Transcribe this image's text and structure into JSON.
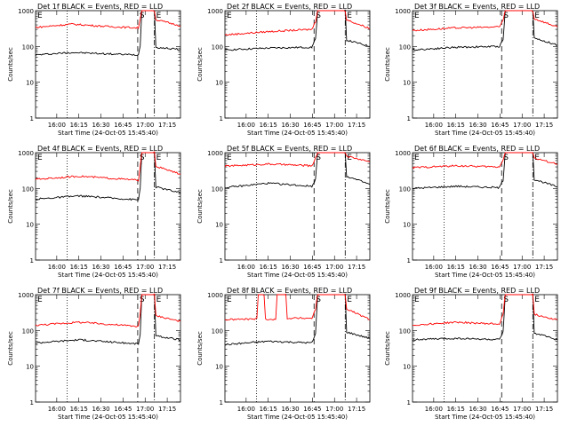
{
  "chart_data": [
    {
      "type": "line",
      "title": "Det 1f BLACK = Events, RED = LLD",
      "xlabel": "Start Time (24-Oct-05 15:45:40)",
      "ylabel": "Counts/sec",
      "yscale": "log",
      "ylim": [
        1,
        1000
      ],
      "x_ticks": [
        "16:00",
        "16:15",
        "16:30",
        "16:45",
        "17:00",
        "17:15"
      ],
      "y_ticks": [
        "1",
        "10",
        "100",
        "1000"
      ],
      "marker_labels": [
        "E",
        "S",
        "E"
      ],
      "series": [
        {
          "color": "#000000",
          "values": [
            [
              0,
              58
            ],
            [
              0.25,
              68
            ],
            [
              0.5,
              62
            ],
            [
              0.71,
              58
            ],
            [
              0.722,
              110
            ],
            [
              0.733,
              1000
            ],
            [
              0.82,
              1000
            ],
            [
              0.83,
              95
            ],
            [
              1,
              82
            ]
          ]
        },
        {
          "color": "#ff0000",
          "values": [
            [
              0,
              340
            ],
            [
              0.25,
              420
            ],
            [
              0.5,
              360
            ],
            [
              0.71,
              330
            ],
            [
              0.722,
              600
            ],
            [
              0.733,
              1000
            ],
            [
              0.82,
              1000
            ],
            [
              0.83,
              560
            ],
            [
              1,
              380
            ]
          ]
        }
      ]
    },
    {
      "type": "line",
      "title": "Det 2f BLACK = Events, RED = LLD",
      "xlabel": "Start Time (24-Oct-05 15:45:40)",
      "ylabel": "Counts/sec",
      "yscale": "log",
      "ylim": [
        1,
        1000
      ],
      "x_ticks": [
        "16:00",
        "16:15",
        "16:30",
        "16:45",
        "17:00",
        "17:15"
      ],
      "y_ticks": [
        "1",
        "10",
        "100",
        "1000"
      ],
      "marker_labels": [
        "E",
        "S",
        "E"
      ],
      "series": [
        {
          "color": "#000000",
          "values": [
            [
              0,
              80
            ],
            [
              0.3,
              90
            ],
            [
              0.6,
              95
            ],
            [
              0.6,
              95
            ],
            [
              0.625,
              160
            ],
            [
              0.64,
              1000
            ],
            [
              0.83,
              1000
            ],
            [
              0.84,
              150
            ],
            [
              1,
              100
            ]
          ]
        },
        {
          "color": "#ff0000",
          "values": [
            [
              0,
              210
            ],
            [
              0.3,
              260
            ],
            [
              0.6,
              300
            ],
            [
              0.625,
              500
            ],
            [
              0.64,
              1000
            ],
            [
              0.83,
              1000
            ],
            [
              0.84,
              550
            ],
            [
              1,
              320
            ]
          ]
        }
      ]
    },
    {
      "type": "line",
      "title": "Det 3f BLACK = Events, RED = LLD",
      "xlabel": "Start Time (24-Oct-05 15:45:40)",
      "ylabel": "Counts/sec",
      "yscale": "log",
      "ylim": [
        1,
        1000
      ],
      "x_ticks": [
        "16:00",
        "16:15",
        "16:30",
        "16:45",
        "17:00",
        "17:15"
      ],
      "y_ticks": [
        "1",
        "10",
        "100",
        "1000"
      ],
      "marker_labels": [
        "E",
        "S",
        "E"
      ],
      "series": [
        {
          "color": "#000000",
          "values": [
            [
              0,
              80
            ],
            [
              0.3,
              95
            ],
            [
              0.6,
              100
            ],
            [
              0.625,
              160
            ],
            [
              0.64,
              1000
            ],
            [
              0.83,
              1000
            ],
            [
              0.84,
              170
            ],
            [
              1,
              110
            ]
          ]
        },
        {
          "color": "#ff0000",
          "values": [
            [
              0,
              280
            ],
            [
              0.3,
              330
            ],
            [
              0.6,
              350
            ],
            [
              0.625,
              550
            ],
            [
              0.64,
              1000
            ],
            [
              0.83,
              1000
            ],
            [
              0.84,
              600
            ],
            [
              1,
              350
            ]
          ]
        }
      ]
    },
    {
      "type": "line",
      "title": "Det 4f BLACK = Events, RED = LLD",
      "xlabel": "Start Time (24-Oct-05 15:45:40)",
      "ylabel": "Counts/sec",
      "yscale": "log",
      "ylim": [
        1,
        1000
      ],
      "x_ticks": [
        "16:00",
        "16:15",
        "16:30",
        "16:45",
        "17:00",
        "17:15"
      ],
      "y_ticks": [
        "1",
        "10",
        "100",
        "1000"
      ],
      "marker_labels": [
        "E",
        "S",
        "E"
      ],
      "series": [
        {
          "color": "#000000",
          "values": [
            [
              0,
              50
            ],
            [
              0.3,
              62
            ],
            [
              0.71,
              48
            ],
            [
              0.722,
              100
            ],
            [
              0.733,
              1000
            ],
            [
              0.82,
              1000
            ],
            [
              0.83,
              110
            ],
            [
              1,
              75
            ]
          ]
        },
        {
          "color": "#ff0000",
          "values": [
            [
              0,
              180
            ],
            [
              0.3,
              220
            ],
            [
              0.71,
              170
            ],
            [
              0.722,
              400
            ],
            [
              0.733,
              1000
            ],
            [
              0.82,
              1000
            ],
            [
              0.83,
              420
            ],
            [
              1,
              250
            ]
          ]
        }
      ]
    },
    {
      "type": "line",
      "title": "Det 5f BLACK = Events, RED = LLD",
      "xlabel": "Start Time (24-Oct-05 15:45:40)",
      "ylabel": "Counts/sec",
      "yscale": "log",
      "ylim": [
        1,
        1000
      ],
      "x_ticks": [
        "16:00",
        "16:15",
        "16:30",
        "16:45",
        "17:00",
        "17:15"
      ],
      "y_ticks": [
        "1",
        "10",
        "100",
        "1000"
      ],
      "marker_labels": [
        "E",
        "S",
        "E"
      ],
      "series": [
        {
          "color": "#000000",
          "values": [
            [
              0,
              105
            ],
            [
              0.3,
              140
            ],
            [
              0.6,
              115
            ],
            [
              0.625,
              180
            ],
            [
              0.64,
              1000
            ],
            [
              0.83,
              1000
            ],
            [
              0.84,
              220
            ],
            [
              1,
              130
            ]
          ]
        },
        {
          "color": "#ff0000",
          "values": [
            [
              0,
              420
            ],
            [
              0.3,
              480
            ],
            [
              0.6,
              430
            ],
            [
              0.625,
              700
            ],
            [
              0.64,
              1000
            ],
            [
              0.83,
              1000
            ],
            [
              0.84,
              800
            ],
            [
              1,
              560
            ]
          ]
        }
      ]
    },
    {
      "type": "line",
      "title": "Det 6f BLACK = Events, RED = LLD",
      "xlabel": "Start Time (24-Oct-05 15:45:40)",
      "ylabel": "Counts/sec",
      "yscale": "log",
      "ylim": [
        1,
        1000
      ],
      "x_ticks": [
        "16:00",
        "16:15",
        "16:30",
        "16:45",
        "17:00",
        "17:15"
      ],
      "y_ticks": [
        "1",
        "10",
        "100",
        "1000"
      ],
      "marker_labels": [
        "E",
        "S",
        "E"
      ],
      "series": [
        {
          "color": "#000000",
          "values": [
            [
              0,
              100
            ],
            [
              0.3,
              115
            ],
            [
              0.6,
              105
            ],
            [
              0.625,
              170
            ],
            [
              0.64,
              1000
            ],
            [
              0.83,
              1000
            ],
            [
              0.84,
              180
            ],
            [
              1,
              110
            ]
          ]
        },
        {
          "color": "#ff0000",
          "values": [
            [
              0,
              380
            ],
            [
              0.3,
              430
            ],
            [
              0.6,
              400
            ],
            [
              0.625,
              650
            ],
            [
              0.64,
              1000
            ],
            [
              0.83,
              1000
            ],
            [
              0.84,
              700
            ],
            [
              1,
              480
            ]
          ]
        }
      ]
    },
    {
      "type": "line",
      "title": "Det 7f BLACK = Events, RED = LLD",
      "xlabel": "Start Time (24-Oct-05 15:45:40)",
      "ylabel": "Counts/sec",
      "yscale": "log",
      "ylim": [
        1,
        1000
      ],
      "x_ticks": [
        "16:00",
        "16:15",
        "16:30",
        "16:45",
        "17:00",
        "17:15"
      ],
      "y_ticks": [
        "1",
        "10",
        "100",
        "1000"
      ],
      "marker_labels": [
        "E",
        "S",
        "E"
      ],
      "series": [
        {
          "color": "#000000",
          "values": [
            [
              0,
              45
            ],
            [
              0.3,
              55
            ],
            [
              0.71,
              42
            ],
            [
              0.722,
              80
            ],
            [
              0.733,
              1000
            ],
            [
              0.82,
              1000
            ],
            [
              0.83,
              70
            ],
            [
              1,
              55
            ]
          ]
        },
        {
          "color": "#ff0000",
          "values": [
            [
              0,
              140
            ],
            [
              0.3,
              170
            ],
            [
              0.71,
              130
            ],
            [
              0.722,
              300
            ],
            [
              0.733,
              1000
            ],
            [
              0.82,
              1000
            ],
            [
              0.83,
              260
            ],
            [
              1,
              180
            ]
          ]
        }
      ]
    },
    {
      "type": "line",
      "title": "Det 8f BLACK = Events, RED = LLD",
      "xlabel": "Start Time (24-Oct-05 15:45:40)",
      "ylabel": "Counts/sec",
      "yscale": "log",
      "ylim": [
        1,
        1000
      ],
      "x_ticks": [
        "16:00",
        "16:15",
        "16:30",
        "16:45",
        "17:00",
        "17:15"
      ],
      "y_ticks": [
        "1",
        "10",
        "100",
        "1000"
      ],
      "marker_labels": [
        "E",
        "S",
        "E"
      ],
      "series": [
        {
          "color": "#000000",
          "values": [
            [
              0,
              40
            ],
            [
              0.3,
              50
            ],
            [
              0.6,
              45
            ],
            [
              0.625,
              80
            ],
            [
              0.64,
              1000
            ],
            [
              0.83,
              1000
            ],
            [
              0.84,
              90
            ],
            [
              1,
              60
            ]
          ]
        },
        {
          "color": "#ff0000",
          "values": [
            [
              0,
              200
            ],
            [
              0.22,
              210
            ],
            [
              0.23,
              1000
            ],
            [
              0.27,
              1000
            ],
            [
              0.28,
              210
            ],
            [
              0.35,
              200
            ],
            [
              0.36,
              1000
            ],
            [
              0.42,
              1000
            ],
            [
              0.43,
              220
            ],
            [
              0.6,
              220
            ],
            [
              0.625,
              400
            ],
            [
              0.64,
              1000
            ],
            [
              0.83,
              1000
            ],
            [
              0.84,
              400
            ],
            [
              1,
              200
            ]
          ]
        }
      ]
    },
    {
      "type": "line",
      "title": "Det 9f BLACK = Events, RED = LLD",
      "xlabel": "Start Time (24-Oct-05 15:45:40)",
      "ylabel": "Counts/sec",
      "yscale": "log",
      "ylim": [
        1,
        1000
      ],
      "x_ticks": [
        "16:00",
        "16:15",
        "16:30",
        "16:45",
        "17:00",
        "17:15"
      ],
      "y_ticks": [
        "1",
        "10",
        "100",
        "1000"
      ],
      "marker_labels": [
        "E",
        "S",
        "E"
      ],
      "series": [
        {
          "color": "#000000",
          "values": [
            [
              0,
              55
            ],
            [
              0.3,
              60
            ],
            [
              0.6,
              55
            ],
            [
              0.625,
              90
            ],
            [
              0.64,
              1000
            ],
            [
              0.83,
              1000
            ],
            [
              0.84,
              85
            ],
            [
              1,
              55
            ]
          ]
        },
        {
          "color": "#ff0000",
          "values": [
            [
              0,
              140
            ],
            [
              0.3,
              170
            ],
            [
              0.6,
              150
            ],
            [
              0.625,
              300
            ],
            [
              0.64,
              1000
            ],
            [
              0.83,
              1000
            ],
            [
              0.84,
              280
            ],
            [
              1,
              200
            ]
          ]
        }
      ]
    }
  ]
}
